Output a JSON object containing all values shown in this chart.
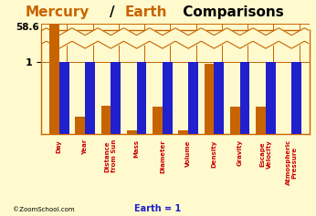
{
  "categories": [
    "Day",
    "Year",
    "Distance\nfrom Sun",
    "Mass",
    "Diameter",
    "Volume",
    "Density",
    "Gravity",
    "Escape\nVelocity",
    "Atmospheric\nPressure"
  ],
  "mercury_values": [
    58.6,
    0.24,
    0.39,
    0.055,
    0.38,
    0.056,
    0.984,
    0.38,
    0.38,
    0.0
  ],
  "earth_values": [
    1.0,
    1.0,
    1.0,
    1.0,
    1.0,
    1.0,
    1.0,
    1.0,
    1.0,
    1.0
  ],
  "mercury_color": "#c86400",
  "earth_color": "#2020cc",
  "bg_color": "#fffacd",
  "border_color": "#c86400",
  "label_color": "#cc0000",
  "watermark": "©ZoomSchool.com",
  "footer": "Earth = 1",
  "title_mercury": "Mercury",
  "title_earth": "Earth",
  "title_rest": " Comparisons"
}
